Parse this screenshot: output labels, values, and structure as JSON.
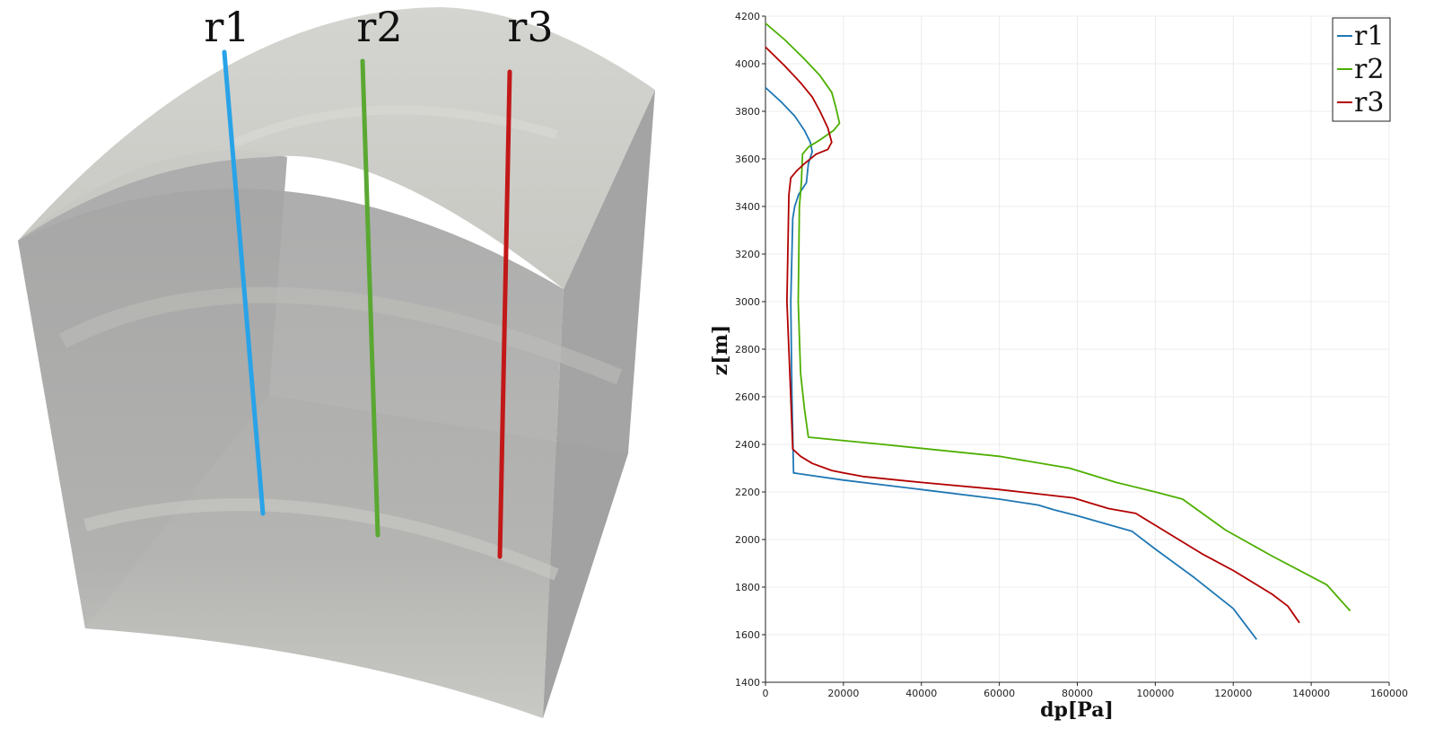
{
  "scene": {
    "wells": [
      {
        "label": "r1",
        "color": "#29a3e8"
      },
      {
        "label": "r2",
        "color": "#5aa832"
      },
      {
        "label": "r3",
        "color": "#c21818"
      }
    ]
  },
  "chart_data": {
    "type": "line",
    "title": "",
    "xlabel": "dp[Pa]",
    "ylabel": "z[m]",
    "xlim": [
      0,
      160000
    ],
    "ylim": [
      1400,
      4200
    ],
    "xticks": [
      0,
      20000,
      40000,
      60000,
      80000,
      100000,
      120000,
      140000,
      160000
    ],
    "yticks": [
      1400,
      1600,
      1800,
      2000,
      2200,
      2400,
      2600,
      2800,
      3000,
      3200,
      3400,
      3600,
      3800,
      4000,
      4200
    ],
    "grid": true,
    "legend": "top-right",
    "series": [
      {
        "name": "r1",
        "color": "#1f77b4",
        "points": [
          [
            0,
            3900
          ],
          [
            4000,
            3840
          ],
          [
            7500,
            3780
          ],
          [
            10000,
            3720
          ],
          [
            11500,
            3670
          ],
          [
            12000,
            3630
          ],
          [
            11000,
            3580
          ],
          [
            10500,
            3500
          ],
          [
            8500,
            3450
          ],
          [
            7500,
            3400
          ],
          [
            7000,
            3350
          ],
          [
            6500,
            3000
          ],
          [
            6800,
            2600
          ],
          [
            7200,
            2280
          ],
          [
            20000,
            2250
          ],
          [
            40000,
            2210
          ],
          [
            60000,
            2170
          ],
          [
            70000,
            2145
          ],
          [
            74000,
            2125
          ],
          [
            80000,
            2100
          ],
          [
            94000,
            2035
          ],
          [
            100000,
            1960
          ],
          [
            110000,
            1840
          ],
          [
            120000,
            1710
          ],
          [
            126000,
            1580
          ]
        ]
      },
      {
        "name": "r2",
        "color": "#4daf00",
        "points": [
          [
            0,
            4170
          ],
          [
            5000,
            4100
          ],
          [
            10000,
            4020
          ],
          [
            14000,
            3950
          ],
          [
            17000,
            3880
          ],
          [
            18000,
            3820
          ],
          [
            19000,
            3750
          ],
          [
            17500,
            3720
          ],
          [
            14000,
            3680
          ],
          [
            11000,
            3650
          ],
          [
            9500,
            3620
          ],
          [
            9200,
            3500
          ],
          [
            8700,
            3400
          ],
          [
            8400,
            3000
          ],
          [
            9000,
            2700
          ],
          [
            10000,
            2550
          ],
          [
            11000,
            2430
          ],
          [
            30000,
            2400
          ],
          [
            60000,
            2350
          ],
          [
            78000,
            2300
          ],
          [
            90000,
            2240
          ],
          [
            100000,
            2200
          ],
          [
            107000,
            2170
          ],
          [
            118000,
            2040
          ],
          [
            130000,
            1930
          ],
          [
            144000,
            1810
          ],
          [
            150000,
            1700
          ]
        ]
      },
      {
        "name": "r3",
        "color": "#b20000",
        "points": [
          [
            0,
            4070
          ],
          [
            5000,
            3990
          ],
          [
            9000,
            3920
          ],
          [
            12000,
            3860
          ],
          [
            14000,
            3800
          ],
          [
            16000,
            3730
          ],
          [
            17000,
            3670
          ],
          [
            16000,
            3640
          ],
          [
            13000,
            3620
          ],
          [
            10000,
            3580
          ],
          [
            8000,
            3550
          ],
          [
            6500,
            3520
          ],
          [
            6000,
            3450
          ],
          [
            5500,
            3000
          ],
          [
            6500,
            2600
          ],
          [
            7000,
            2380
          ],
          [
            9000,
            2350
          ],
          [
            12000,
            2320
          ],
          [
            17000,
            2290
          ],
          [
            20000,
            2280
          ],
          [
            25000,
            2265
          ],
          [
            40000,
            2240
          ],
          [
            60000,
            2210
          ],
          [
            79000,
            2175
          ],
          [
            82000,
            2160
          ],
          [
            88000,
            2130
          ],
          [
            95000,
            2110
          ],
          [
            100000,
            2060
          ],
          [
            106000,
            2000
          ],
          [
            112000,
            1940
          ],
          [
            120000,
            1870
          ],
          [
            130000,
            1770
          ],
          [
            134000,
            1720
          ],
          [
            137000,
            1650
          ]
        ]
      }
    ]
  }
}
